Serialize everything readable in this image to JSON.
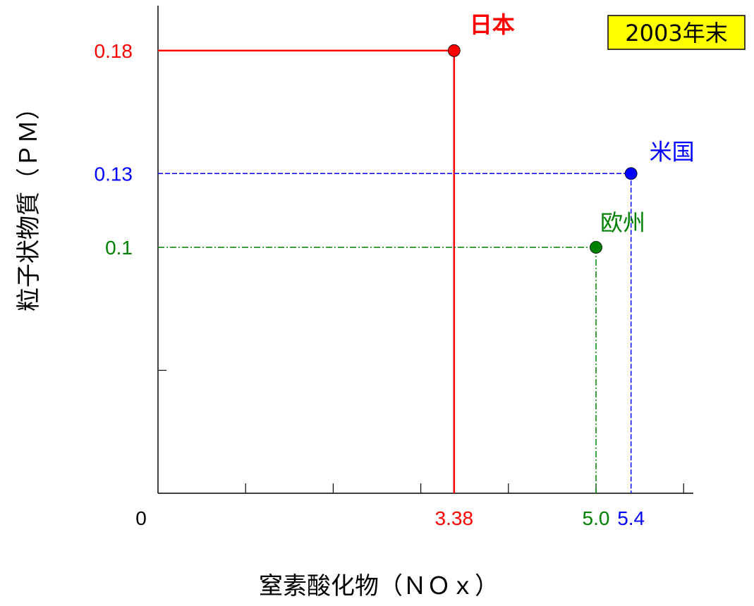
{
  "chart_data": {
    "type": "scatter",
    "badge": "2003年末",
    "xlabel": "窒素酸化物（ＮＯｘ）",
    "ylabel": "粒子状物質（ＰＭ）",
    "xlim": [
      0,
      6
    ],
    "ylim": [
      0,
      0.2
    ],
    "origin_label": "0",
    "grid": false,
    "series": [
      {
        "name": "日本",
        "x": 3.38,
        "y": 0.18,
        "x_label": "3.38",
        "y_label": "0.18",
        "color": "#ff0000",
        "line_style": "solid",
        "name_bold": true
      },
      {
        "name": "米国",
        "x": 5.4,
        "y": 0.13,
        "x_label": "5.4",
        "y_label": "0.13",
        "color": "#0000ff",
        "line_style": "dashed",
        "name_bold": false
      },
      {
        "name": "欧州",
        "x": 5.0,
        "y": 0.1,
        "x_label": "5.0",
        "y_label": "0.1",
        "color": "#008000",
        "line_style": "dashdot",
        "name_bold": false
      }
    ]
  }
}
